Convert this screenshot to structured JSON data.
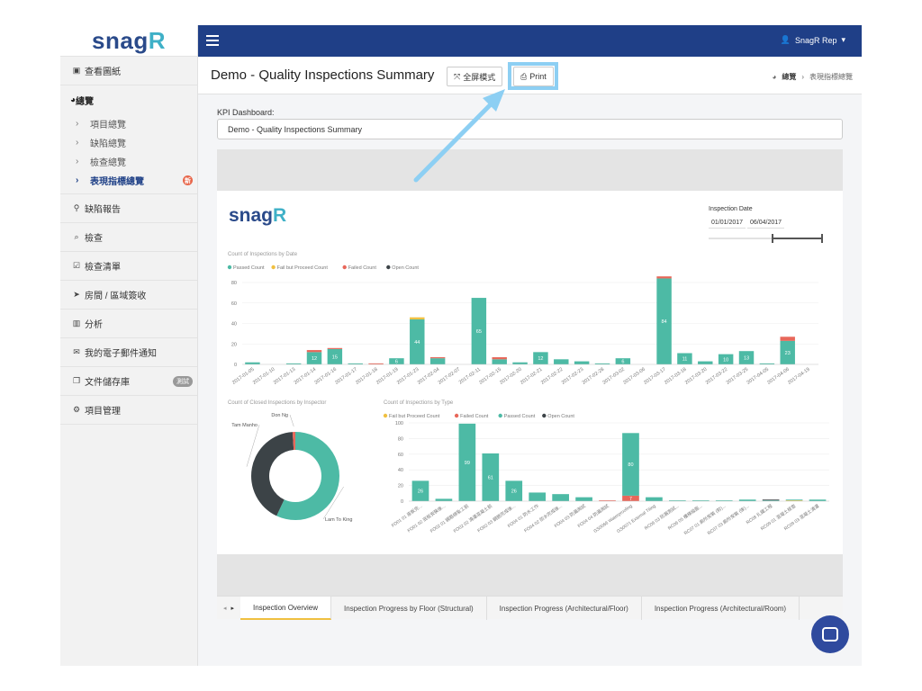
{
  "brand": {
    "logo_main": "snag",
    "logo_r": "R"
  },
  "sidebar": {
    "items": [
      {
        "label": "查看圖紙",
        "icon": "image-icon"
      },
      {
        "label": "總覽",
        "icon": "dashboard-icon",
        "children": [
          {
            "label": "項目總覽"
          },
          {
            "label": "缺陷總覽"
          },
          {
            "label": "檢查總覽"
          },
          {
            "label": "表現指標總覽",
            "badge": "新",
            "active": true
          }
        ]
      },
      {
        "label": "缺陷報告",
        "icon": "map-marker-icon"
      },
      {
        "label": "檢查",
        "icon": "search-icon"
      },
      {
        "label": "檢查清單",
        "icon": "checkbox-icon"
      },
      {
        "label": "房間 / 區域簽收",
        "icon": "paper-plane-icon"
      },
      {
        "label": "分析",
        "icon": "bar-chart-icon"
      },
      {
        "label": "我的電子郵件通知",
        "icon": "envelope-icon"
      },
      {
        "label": "文件儲存庫",
        "icon": "files-icon",
        "badge": "測試"
      },
      {
        "label": "項目管理",
        "icon": "gears-icon"
      }
    ]
  },
  "topbar": {
    "user": "SnagR Rep"
  },
  "header": {
    "title": "Demo - Quality Inspections Summary",
    "fullscreen_label": "全屏模式",
    "print_label": "Print",
    "breadcrumb": [
      "總覽",
      "表現指標總覽"
    ]
  },
  "kpi": {
    "label": "KPI Dashboard:",
    "selected": "Demo - Quality Inspections Summary"
  },
  "report": {
    "logo_main": "snag",
    "logo_r": "R",
    "date_label": "Inspection Date",
    "date_from": "01/01/2017",
    "date_to": "06/04/2017"
  },
  "colors": {
    "passed": "#4dbaa5",
    "fail_proceed": "#f0c040",
    "failed": "#e8675a",
    "open": "#3c4347"
  },
  "chart_data": [
    {
      "type": "bar",
      "title": "Count of Inspections by Date",
      "legend": [
        "Passed Count",
        "Fail but Proceed Count",
        "Failed Count",
        "Open Count"
      ],
      "ylim": [
        0,
        80
      ],
      "yticks": [
        0,
        20,
        40,
        60,
        80
      ],
      "categories": [
        "2017-01-05",
        "2017-01-10",
        "2017-01-13",
        "2017-01-14",
        "2017-01-16",
        "2017-01-17",
        "2017-01-18",
        "2017-01-19",
        "2017-01-23",
        "2017-02-04",
        "2017-02-07",
        "2017-02-11",
        "2017-02-15",
        "2017-02-20",
        "2017-02-21",
        "2017-02-22",
        "2017-02-23",
        "2017-02-28",
        "2017-03-02",
        "2017-03-06",
        "2017-03-17",
        "2017-03-18",
        "2017-03-20",
        "2017-03-22",
        "2017-03-25",
        "2017-04-05",
        "2017-04-06",
        "2017-04-19"
      ],
      "series": [
        {
          "name": "Passed Count",
          "values": [
            2,
            0,
            1,
            12,
            15,
            1,
            0,
            6,
            44,
            6,
            0,
            65,
            5,
            2,
            12,
            5,
            3,
            1,
            6,
            0,
            84,
            11,
            3,
            10,
            13,
            1,
            23,
            0
          ]
        },
        {
          "name": "Fail but Proceed Count",
          "values": [
            0,
            0,
            0,
            0,
            0,
            0,
            0,
            0,
            2,
            0,
            0,
            0,
            0,
            0,
            0,
            0,
            0,
            0,
            0,
            0,
            0,
            0,
            0,
            0,
            0,
            0,
            0,
            0
          ]
        },
        {
          "name": "Failed Count",
          "values": [
            0,
            0,
            0,
            2,
            1,
            0,
            1,
            0,
            0,
            1,
            0,
            0,
            2,
            0,
            0,
            0,
            0,
            0,
            0,
            0,
            2,
            0,
            0,
            0,
            0,
            0,
            4,
            0
          ]
        },
        {
          "name": "Open Count",
          "values": [
            0,
            0,
            0,
            0,
            0,
            0,
            0,
            0,
            0,
            0,
            0,
            0,
            0,
            0,
            0,
            0,
            0,
            0,
            0,
            0,
            0,
            0,
            0,
            0,
            0,
            0,
            0,
            0
          ]
        }
      ],
      "data_labels": [
        null,
        null,
        null,
        "12",
        "15",
        null,
        null,
        "6",
        "44",
        null,
        null,
        "65",
        null,
        null,
        "12",
        null,
        null,
        null,
        "6",
        null,
        "84",
        "11",
        null,
        "10",
        "13",
        null,
        "23",
        null
      ]
    },
    {
      "type": "pie",
      "title": "Count of Closed Inspections by Inspector",
      "donut": true,
      "slices": [
        {
          "name": "Lam To King",
          "value": 57
        },
        {
          "name": "Tam Manho",
          "value": 42
        },
        {
          "name": "Don Ng",
          "value": 1
        }
      ]
    },
    {
      "type": "bar",
      "title": "Count of Inspections by Type",
      "legend": [
        "Fail but Proceed Count",
        "Failed Count",
        "Passed Count",
        "Open Count"
      ],
      "ylim": [
        0,
        100
      ],
      "yticks": [
        0,
        20,
        40,
        60,
        80,
        100
      ],
      "categories": [
        "FO01 01 座板完...",
        "FO01 02 底板安裝後...",
        "FO02 01 鋼筋綁紮工前",
        "FO02 02 澆灌混凝土前",
        "FO02 03 鋼筋完成後...",
        "FO04 01 防水工作",
        "FO04 02 防水完成後...",
        "FO04 03 防漏測試",
        "FO04 04 防漏測試",
        "GS0066 Waterproofing",
        "GS0071 External Tiling",
        "RC06 03 防漏測試...",
        "RC06 05 樓梯級面...",
        "RC07 01 廁所安裝 (前)...",
        "RC07 03 廁所安裝 (後)...",
        "RC08 扎鐵工程",
        "RC09 01 混凝土檢查",
        "RC09 03 混凝土澆灌"
      ],
      "series": [
        {
          "name": "Fail but Proceed Count",
          "values": [
            0,
            0,
            0,
            0,
            0,
            0,
            0,
            0,
            0,
            0,
            0,
            0,
            0,
            0,
            0,
            0,
            1,
            0
          ]
        },
        {
          "name": "Failed Count",
          "values": [
            0,
            0,
            0,
            0,
            0,
            0,
            0,
            0,
            1,
            7,
            0,
            0,
            0,
            0,
            0,
            0,
            0,
            0
          ]
        },
        {
          "name": "Passed Count",
          "values": [
            26,
            3,
            99,
            61,
            26,
            11,
            9,
            5,
            0,
            80,
            5,
            1,
            1,
            1,
            2,
            1,
            1,
            2
          ]
        },
        {
          "name": "Open Count",
          "values": [
            0,
            0,
            0,
            0,
            0,
            0,
            0,
            0,
            0,
            0,
            0,
            0,
            0,
            0,
            0,
            1,
            0,
            0
          ]
        }
      ],
      "data_labels": [
        "26",
        null,
        "99",
        "61",
        "26",
        null,
        null,
        null,
        null,
        "80",
        null,
        null,
        null,
        null,
        null,
        null,
        null,
        null
      ],
      "failed_labels": [
        null,
        null,
        null,
        null,
        null,
        null,
        null,
        null,
        null,
        "7",
        null,
        null,
        null,
        null,
        null,
        null,
        null,
        null
      ]
    }
  ],
  "tabs": [
    {
      "label": "Inspection Overview",
      "active": true
    },
    {
      "label": "Inspection Progress by Floor (Structural)"
    },
    {
      "label": "Inspection Progress (Architectural/Floor)"
    },
    {
      "label": "Inspection Progress (Architectural/Room)"
    }
  ]
}
